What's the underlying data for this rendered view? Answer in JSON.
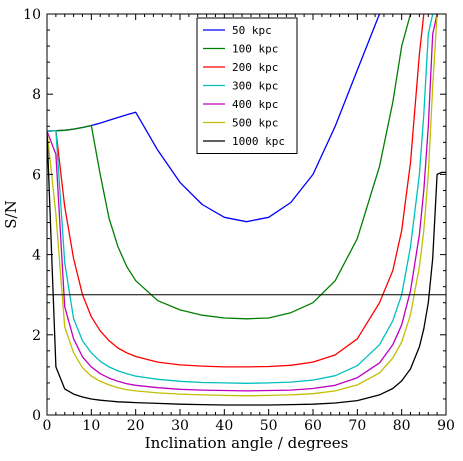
{
  "chart_data": {
    "type": "line",
    "title": "",
    "xlabel": "Inclination angle / degrees",
    "ylabel": "S/N",
    "xlim": [
      0,
      90
    ],
    "ylim": [
      0,
      10
    ],
    "x_ticks": [
      0,
      10,
      20,
      30,
      40,
      50,
      60,
      70,
      80,
      90
    ],
    "y_ticks": [
      0,
      2,
      4,
      6,
      8,
      10
    ],
    "grid": false,
    "legend_position": "top-center",
    "x": [
      0,
      2,
      4,
      6,
      8,
      10,
      12,
      14,
      16,
      18,
      20,
      25,
      30,
      35,
      40,
      45,
      50,
      55,
      60,
      65,
      70,
      75,
      78,
      80,
      82,
      84,
      85,
      86,
      87,
      88,
      89,
      90
    ],
    "series": [
      {
        "name": "50 kpc",
        "color": "#0000ff",
        "values": [
          7.08,
          7.09,
          7.1,
          7.13,
          7.17,
          7.22,
          7.28,
          7.35,
          7.42,
          7.49,
          7.55,
          6.6,
          5.8,
          5.25,
          4.93,
          4.82,
          4.93,
          5.3,
          6.0,
          7.2,
          8.6,
          10.0,
          null,
          null,
          null,
          null,
          null,
          null,
          null,
          null,
          null,
          null
        ]
      },
      {
        "name": "100 kpc",
        "color": "#007f00",
        "values": [
          7.08,
          7.09,
          7.1,
          7.13,
          7.17,
          7.22,
          6.0,
          4.9,
          4.2,
          3.7,
          3.35,
          2.85,
          2.62,
          2.49,
          2.42,
          2.4,
          2.42,
          2.55,
          2.8,
          3.35,
          4.4,
          6.2,
          7.8,
          9.2,
          10.0,
          null,
          null,
          null,
          null,
          null,
          null,
          null
        ]
      },
      {
        "name": "200 kpc",
        "color": "#ff0000",
        "values": [
          7.08,
          7.09,
          5.2,
          3.9,
          3.0,
          2.45,
          2.1,
          1.85,
          1.67,
          1.55,
          1.46,
          1.32,
          1.25,
          1.22,
          1.2,
          1.2,
          1.21,
          1.24,
          1.32,
          1.5,
          1.9,
          2.8,
          3.6,
          4.6,
          6.3,
          9.0,
          10.0,
          null,
          null,
          null,
          null,
          null
        ]
      },
      {
        "name": "300 kpc",
        "color": "#00bfbf",
        "values": [
          7.08,
          7.09,
          3.8,
          2.4,
          1.85,
          1.55,
          1.34,
          1.2,
          1.1,
          1.03,
          0.97,
          0.89,
          0.84,
          0.81,
          0.8,
          0.79,
          0.8,
          0.82,
          0.87,
          0.98,
          1.23,
          1.75,
          2.35,
          3.0,
          4.2,
          6.0,
          7.5,
          9.5,
          10.0,
          null,
          null,
          null
        ]
      },
      {
        "name": "400 kpc",
        "color": "#bf00bf",
        "values": [
          7.08,
          6.5,
          2.7,
          1.9,
          1.45,
          1.2,
          1.03,
          0.92,
          0.84,
          0.78,
          0.74,
          0.68,
          0.64,
          0.62,
          0.61,
          0.6,
          0.61,
          0.62,
          0.66,
          0.74,
          0.93,
          1.3,
          1.75,
          2.25,
          3.1,
          4.5,
          5.6,
          7.2,
          9.5,
          10.0,
          null,
          null
        ]
      },
      {
        "name": "500 kpc",
        "color": "#bfbf00",
        "values": [
          7.08,
          5.0,
          2.2,
          1.55,
          1.18,
          0.97,
          0.84,
          0.75,
          0.68,
          0.63,
          0.6,
          0.55,
          0.52,
          0.5,
          0.49,
          0.48,
          0.49,
          0.5,
          0.53,
          0.6,
          0.75,
          1.05,
          1.42,
          1.82,
          2.5,
          3.7,
          4.6,
          6.0,
          8.2,
          10.0,
          null,
          null
        ]
      },
      {
        "name": "1000 kpc",
        "color": "#000000",
        "values": [
          7.08,
          1.2,
          0.65,
          0.52,
          0.45,
          0.4,
          0.37,
          0.35,
          0.33,
          0.32,
          0.31,
          0.29,
          0.27,
          0.26,
          0.25,
          0.25,
          0.25,
          0.26,
          0.27,
          0.3,
          0.36,
          0.5,
          0.66,
          0.85,
          1.15,
          1.7,
          2.15,
          2.8,
          3.9,
          6.0,
          6.05,
          6.05
        ]
      }
    ],
    "reference_lines": [
      {
        "orientation": "horizontal",
        "y": 3,
        "color": "#000000"
      }
    ]
  }
}
